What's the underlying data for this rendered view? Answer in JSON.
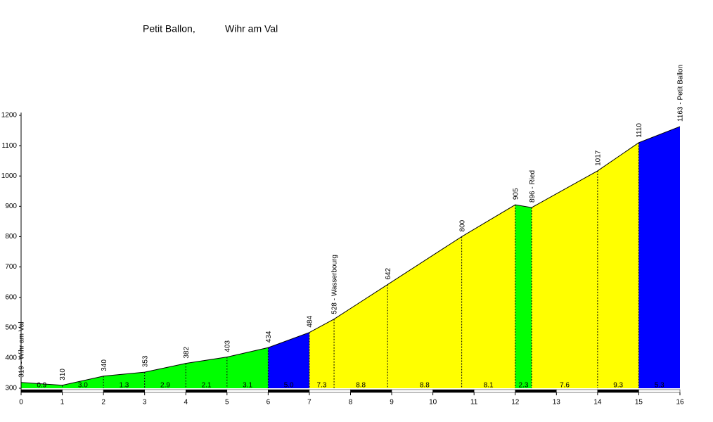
{
  "chart_data": {
    "type": "profile",
    "title": "Petit Ballon,",
    "subtitle": "Wihr am Val",
    "x": [
      0,
      1,
      2,
      3,
      4,
      5,
      6,
      7,
      7.6,
      8.9,
      10.7,
      12,
      12.4,
      14,
      15,
      16
    ],
    "values": [
      319,
      310,
      340,
      353,
      382,
      403,
      434,
      484,
      528,
      642,
      800,
      905,
      896,
      1017,
      1110,
      1163
    ],
    "value_labels": [
      "319 - Wihr am Val",
      "310",
      "340",
      "353",
      "382",
      "403",
      "434",
      "484",
      "528 - Wasserbourg",
      "642",
      "800",
      "905",
      "896 - Ried",
      "1017",
      "1110",
      "1163 - Petit Ballon"
    ],
    "segments": {
      "values": [
        0.9,
        3,
        1.3,
        2.9,
        2.1,
        3.1,
        5,
        7.3,
        8.8,
        8.8,
        8.1,
        2.3,
        7.6,
        9.3,
        5.3
      ],
      "value_labels": [
        "0.9",
        "3.0",
        "1.3",
        "2.9",
        "2.1",
        "3.1",
        "5.0",
        "7.3",
        "8.8",
        "8.8",
        "8.1",
        "2.3",
        "7.6",
        "9.3",
        "5.3"
      ],
      "colors": [
        "#00ff00",
        "#00ff00",
        "#00ff00",
        "#00ff00",
        "#00ff00",
        "#00ff00",
        "#0000ff",
        "#ffff00",
        "#ffff00",
        "#ffff00",
        "#ffff00",
        "#00ff00",
        "#ffff00",
        "#ffff00",
        "#0000ff"
      ]
    },
    "xlim": [
      0,
      16
    ],
    "xticks": [
      0,
      1,
      2,
      3,
      4,
      5,
      6,
      7,
      8,
      9,
      10,
      11,
      12,
      13,
      14,
      15,
      16
    ],
    "ylim": [
      300,
      1200
    ],
    "yticks": [
      300,
      400,
      500,
      600,
      700,
      800,
      900,
      1000,
      1100,
      1200
    ]
  }
}
